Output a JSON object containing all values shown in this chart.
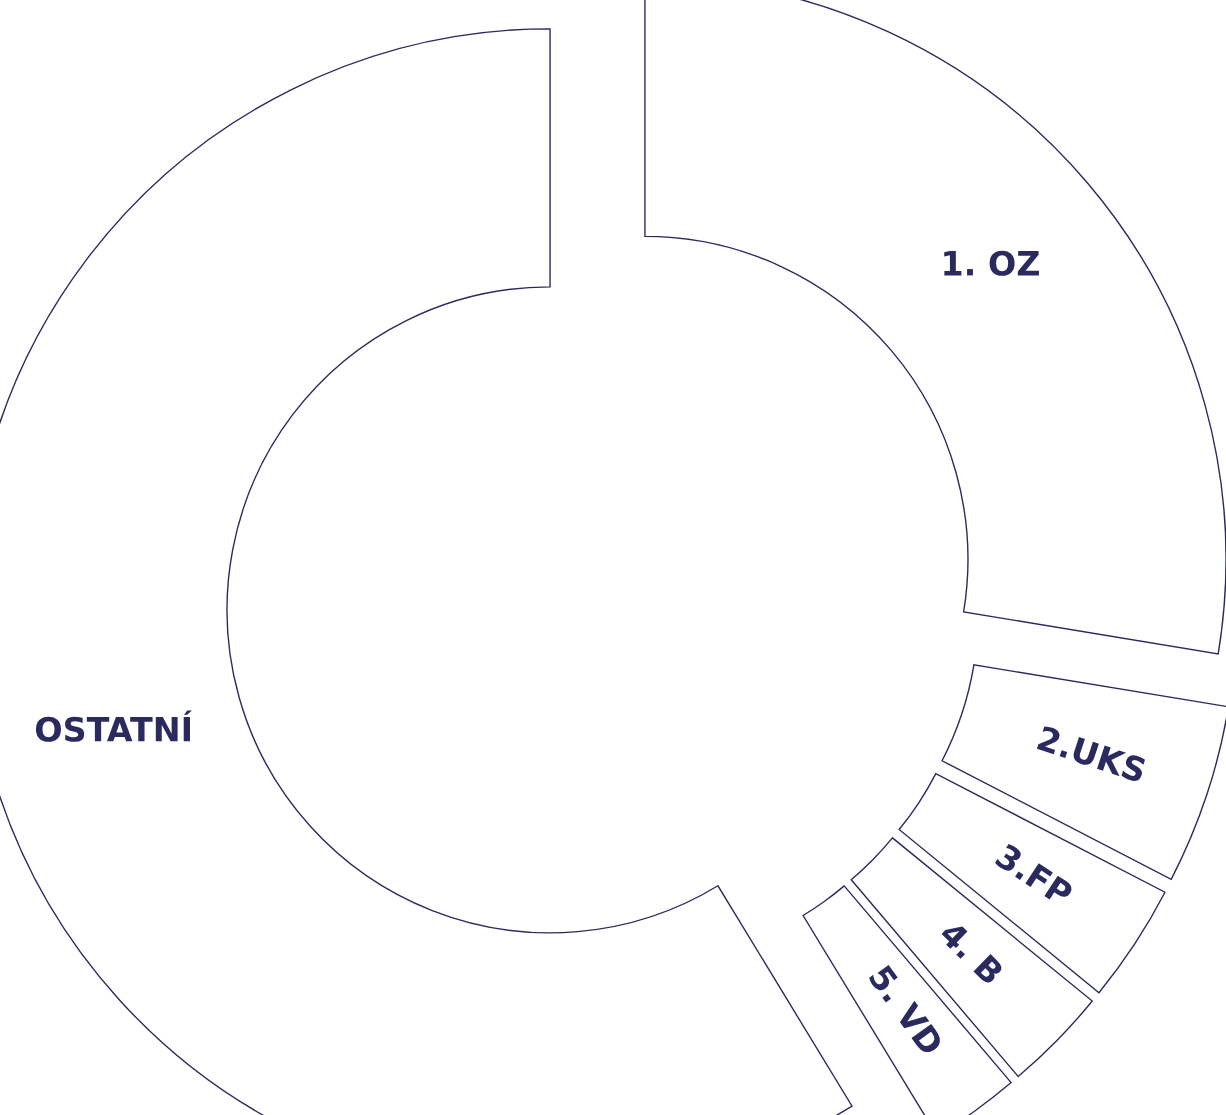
{
  "chart_data": {
    "type": "donut",
    "categories": [
      "1. OZ",
      "2.UKS",
      "3.FP",
      "4. B",
      "5. VD",
      "OSTATNÍ"
    ],
    "values": [
      27.6,
      5.0,
      3.3,
      2.9,
      2.5,
      58.7
    ],
    "colors": [
      "#ffffff",
      "#ffffff",
      "#ffffff",
      "#ffffff",
      "#ffffff",
      "#ffffff"
    ]
  }
}
